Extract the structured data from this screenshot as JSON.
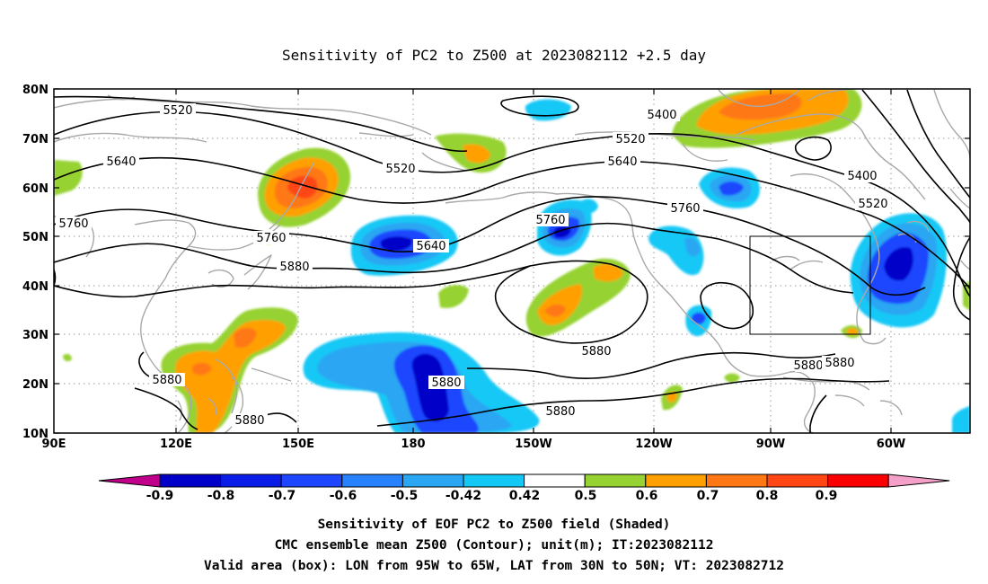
{
  "title": "Sensitivity of PC2 to Z500 at 2023082112 +2.5 day",
  "axes": {
    "lat_labels": [
      "80N",
      "70N",
      "60N",
      "50N",
      "40N",
      "30N",
      "20N",
      "10N"
    ],
    "lon_labels": [
      "90E",
      "120E",
      "150E",
      "180",
      "150W",
      "120W",
      "90W",
      "60W"
    ]
  },
  "colorbar": {
    "labels": [
      "-0.9",
      "-0.8",
      "-0.7",
      "-0.6",
      "-0.5",
      "-0.42",
      "0.42",
      "0.5",
      "0.6",
      "0.7",
      "0.8",
      "0.9"
    ],
    "colors": [
      "#c0008a",
      "#0000c8",
      "#0a1ee8",
      "#1e46ff",
      "#2882ff",
      "#2aa6f2",
      "#14c8f5",
      "#ffffff",
      "#96d232",
      "#ffa000",
      "#ff7814",
      "#ff4614",
      "#fa0000",
      "#f5a0c8"
    ]
  },
  "contour_labels": [
    "5520",
    "5400",
    "5520",
    "5640",
    "5520",
    "5640",
    "5400",
    "5520",
    "5760",
    "5640",
    "5760",
    "5760",
    "5760",
    "5880",
    "5880",
    "5880",
    "5880",
    "5880",
    "5880",
    "5880",
    "5880"
  ],
  "valid_box": {
    "lon_from": "95W",
    "lon_to": "65W",
    "lat_from": "30N",
    "lat_to": "50N"
  },
  "captions": [
    "Sensitivity of EOF PC2 to Z500 field (Shaded)",
    "CMC ensemble mean Z500 (Contour); unit(m); IT:2023082112",
    "Valid area (box): LON from 95W to 65W, LAT from 30N to 50N; VT: 2023082712"
  ]
}
